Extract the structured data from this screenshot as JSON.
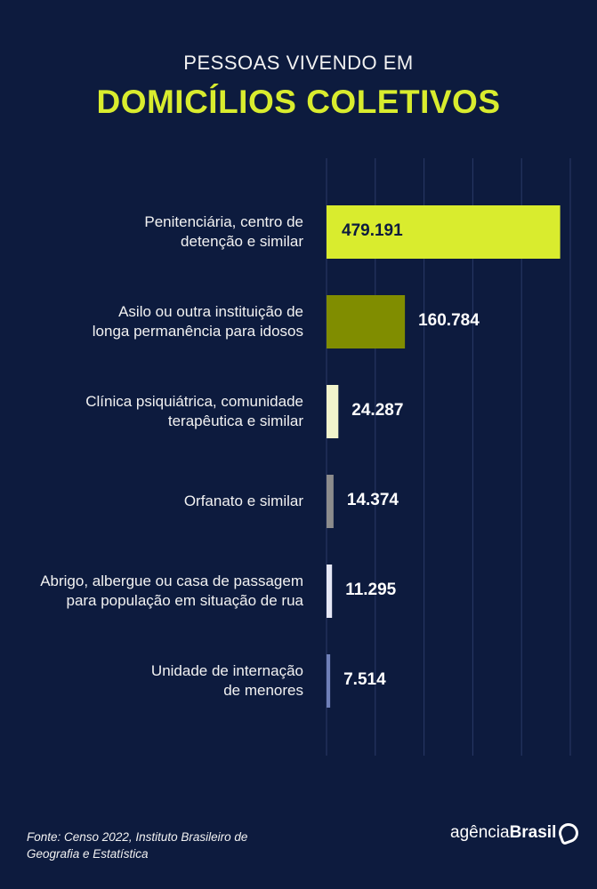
{
  "header": {
    "subtitle": "PESSOAS VIVENDO EM",
    "title": "DOMICÍLIOS COLETIVOS"
  },
  "chart_data": {
    "type": "bar",
    "orientation": "horizontal",
    "title": "PESSOAS VIVENDO EM DOMICÍLIOS COLETIVOS",
    "categories": [
      [
        "Penitenciária, centro de",
        "detenção e similar"
      ],
      [
        "Asilo ou outra instituição de",
        "longa permanência para idosos"
      ],
      [
        "Clínica psiquiátrica, comunidade",
        "terapêutica e similar"
      ],
      [
        "Orfanato e similar"
      ],
      [
        "Abrigo, albergue ou casa de passagem",
        "para população em situação de rua"
      ],
      [
        "Unidade de internação",
        "de menores"
      ]
    ],
    "values": [
      479191,
      160784,
      24287,
      14374,
      11295,
      7514
    ],
    "value_labels": [
      "479.191",
      "160.784",
      "24.287",
      "14.374",
      "11.295",
      "7.514"
    ],
    "colors": [
      "#d9ec2e",
      "#808d00",
      "#f1f4cc",
      "#8c8c8c",
      "#e6e8f6",
      "#6f80b8"
    ],
    "xlim": [
      0,
      500000
    ],
    "grid": true,
    "grid_step": 100000
  },
  "footer": {
    "source": "Fonte:  Censo 2022, Instituto Brasileiro de Geografia e Estatística",
    "logo_light": "agência",
    "logo_bold": "Brasil"
  }
}
